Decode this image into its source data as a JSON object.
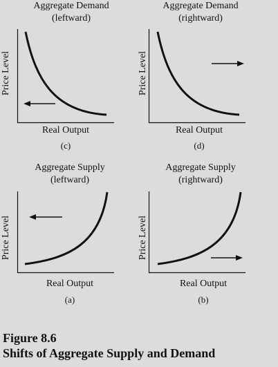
{
  "panels": [
    {
      "id": "c",
      "title_line1": "Aggregate Demand",
      "title_line2": "(leftward)",
      "y_label": "Price Level",
      "x_label": "Real Output",
      "sub_label": "(c)",
      "curve": "demand",
      "arrow": "left"
    },
    {
      "id": "d",
      "title_line1": "Aggregate Demand",
      "title_line2": "(rightward)",
      "y_label": "Price Level",
      "x_label": "Real Output",
      "sub_label": "(d)",
      "curve": "demand",
      "arrow": "right"
    },
    {
      "id": "a",
      "title_line1": "Aggregate Supply",
      "title_line2": "(leftward)",
      "y_label": "Price Level",
      "x_label": "Real Output",
      "sub_label": "(a)",
      "curve": "supply",
      "arrow": "left"
    },
    {
      "id": "b",
      "title_line1": "Aggregate Supply",
      "title_line2": "(rightward)",
      "y_label": "Price Level",
      "x_label": "Real Output",
      "sub_label": "(b)",
      "curve": "supply",
      "arrow": "right"
    }
  ],
  "figure": {
    "number": "Figure 8.6",
    "caption": "Shifts of Aggregate Supply and Demand"
  },
  "colors": {
    "background": "#dcdcdc",
    "ink": "#111111"
  }
}
